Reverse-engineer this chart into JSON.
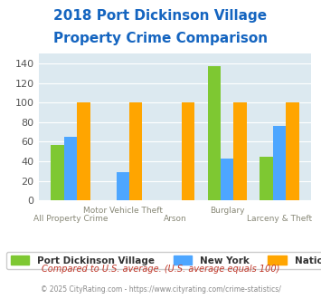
{
  "title_line1": "2018 Port Dickinson Village",
  "title_line2": "Property Crime Comparison",
  "title_color": "#1565c0",
  "categories": [
    "All Property Crime",
    "Motor Vehicle Theft",
    "Arson",
    "Burglary",
    "Larceny & Theft"
  ],
  "port_dickinson": [
    57,
    0,
    0,
    137,
    45
  ],
  "new_york": [
    65,
    29,
    0,
    43,
    76
  ],
  "national": [
    100,
    100,
    100,
    100,
    100
  ],
  "color_port": "#7ec832",
  "color_ny": "#4da6ff",
  "color_national": "#ffa500",
  "ylim": [
    0,
    150
  ],
  "yticks": [
    0,
    20,
    40,
    60,
    80,
    100,
    120,
    140
  ],
  "background_color": "#dce9f0",
  "grid_color": "#ffffff",
  "legend_labels": [
    "Port Dickinson Village",
    "New York",
    "National"
  ],
  "footnote1": "Compared to U.S. average. (U.S. average equals 100)",
  "footnote2": "© 2025 CityRating.com - https://www.cityrating.com/crime-statistics/",
  "footnote1_color": "#c0392b",
  "footnote2_color": "#888888",
  "xlabel_color": "#888877",
  "label_rows": [
    1,
    0,
    1,
    0,
    1
  ]
}
